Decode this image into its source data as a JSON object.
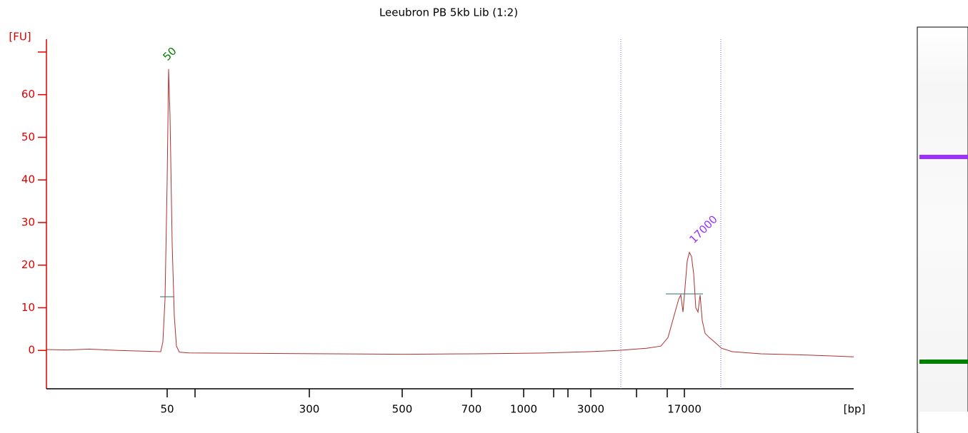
{
  "chart_data": {
    "type": "line",
    "title": "Leeubron PB 5kb Lib (1:2)",
    "ylabel": "[FU]",
    "xlabel": "[bp]",
    "color": "#b03030",
    "axis_color": "#e00000",
    "x": [
      0,
      3,
      6,
      10,
      14,
      16,
      16.3,
      16.6,
      16.9,
      17.1,
      17.3,
      17.6,
      17.9,
      18.2,
      18.6,
      20,
      30,
      40,
      50,
      60,
      70,
      76,
      80,
      84,
      86,
      87,
      88,
      88.5,
      88.8,
      89.1,
      89.4,
      89.7,
      90,
      90.3,
      90.6,
      90.9,
      91.2,
      91.5,
      91.8,
      92.2,
      92.8,
      93.5,
      94.5,
      96,
      100,
      105,
      110,
      113
    ],
    "values": [
      0.2,
      0.1,
      0.3,
      0,
      -0.2,
      -0.3,
      2,
      12,
      40,
      66,
      55,
      25,
      8,
      1,
      -0.4,
      -0.6,
      -0.7,
      -0.8,
      -0.9,
      -0.8,
      -0.6,
      -0.3,
      0,
      0.5,
      1,
      3,
      9,
      12,
      13,
      9,
      15,
      21,
      23,
      22,
      18,
      10,
      9,
      13,
      7,
      4,
      3,
      2,
      0.5,
      -0.3,
      -0.8,
      -1,
      -1.3,
      -1.5
    ],
    "xlim": [
      0,
      113
    ],
    "xticks": [
      {
        "value": 16.9,
        "label": "50"
      },
      {
        "value": 20.8,
        "label": null
      },
      {
        "value": 36.8,
        "label": "300"
      },
      {
        "value": 49.8,
        "label": "500"
      },
      {
        "value": 59.5,
        "label": "700"
      },
      {
        "value": 66.8,
        "label": "1000"
      },
      {
        "value": 71.0,
        "label": null
      },
      {
        "value": 73.0,
        "label": null
      },
      {
        "value": 76.2,
        "label": "3000"
      },
      {
        "value": 82.6,
        "label": null
      },
      {
        "value": 86.9,
        "label": null
      },
      {
        "value": 89.3,
        "label": "17000"
      }
    ],
    "ylim": [
      -9,
      73
    ],
    "yticks": [
      0,
      10,
      20,
      30,
      40,
      50,
      60,
      {
        "value": 70,
        "label": null
      }
    ],
    "region_lines": [
      80.4,
      94.4
    ],
    "annotations": [
      {
        "text": "50",
        "color": "#008000"
      },
      {
        "text": "17000",
        "color": "#9b30ff"
      }
    ]
  }
}
